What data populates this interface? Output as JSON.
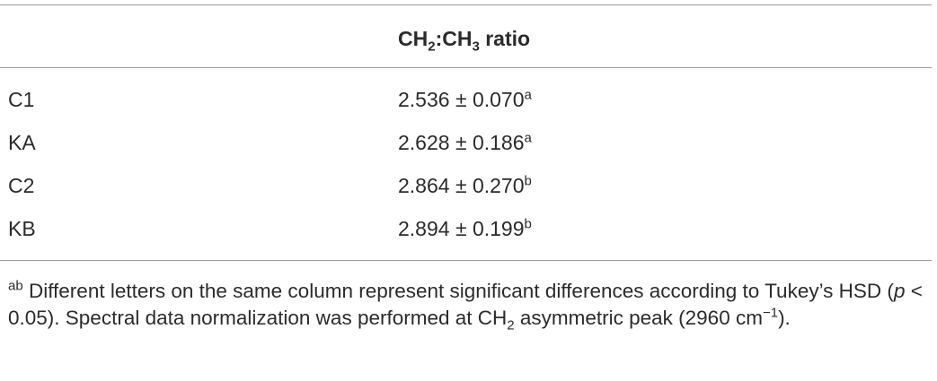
{
  "table": {
    "header": [
      "CH",
      "2",
      ":CH",
      "3",
      "ratio"
    ],
    "rows": [
      {
        "label": "C1",
        "value": "2.536 ± 0.070",
        "letter": "a"
      },
      {
        "label": "KA",
        "value": "2.628 ± 0.186",
        "letter": "a"
      },
      {
        "label": "C2",
        "value": "2.864 ± 0.270",
        "letter": "b"
      },
      {
        "label": "KB",
        "value": "2.894 ± 0.199",
        "letter": "b"
      }
    ]
  },
  "footnote": {
    "marker": "ab",
    "parts": [
      "Different letters on the same column represent significant differences according to Tukey’s HSD (",
      "p",
      " < 0.05). Spectral data normalization was performed at CH",
      "2",
      " asymmetric peak (2960 cm",
      "−1",
      ")."
    ]
  }
}
